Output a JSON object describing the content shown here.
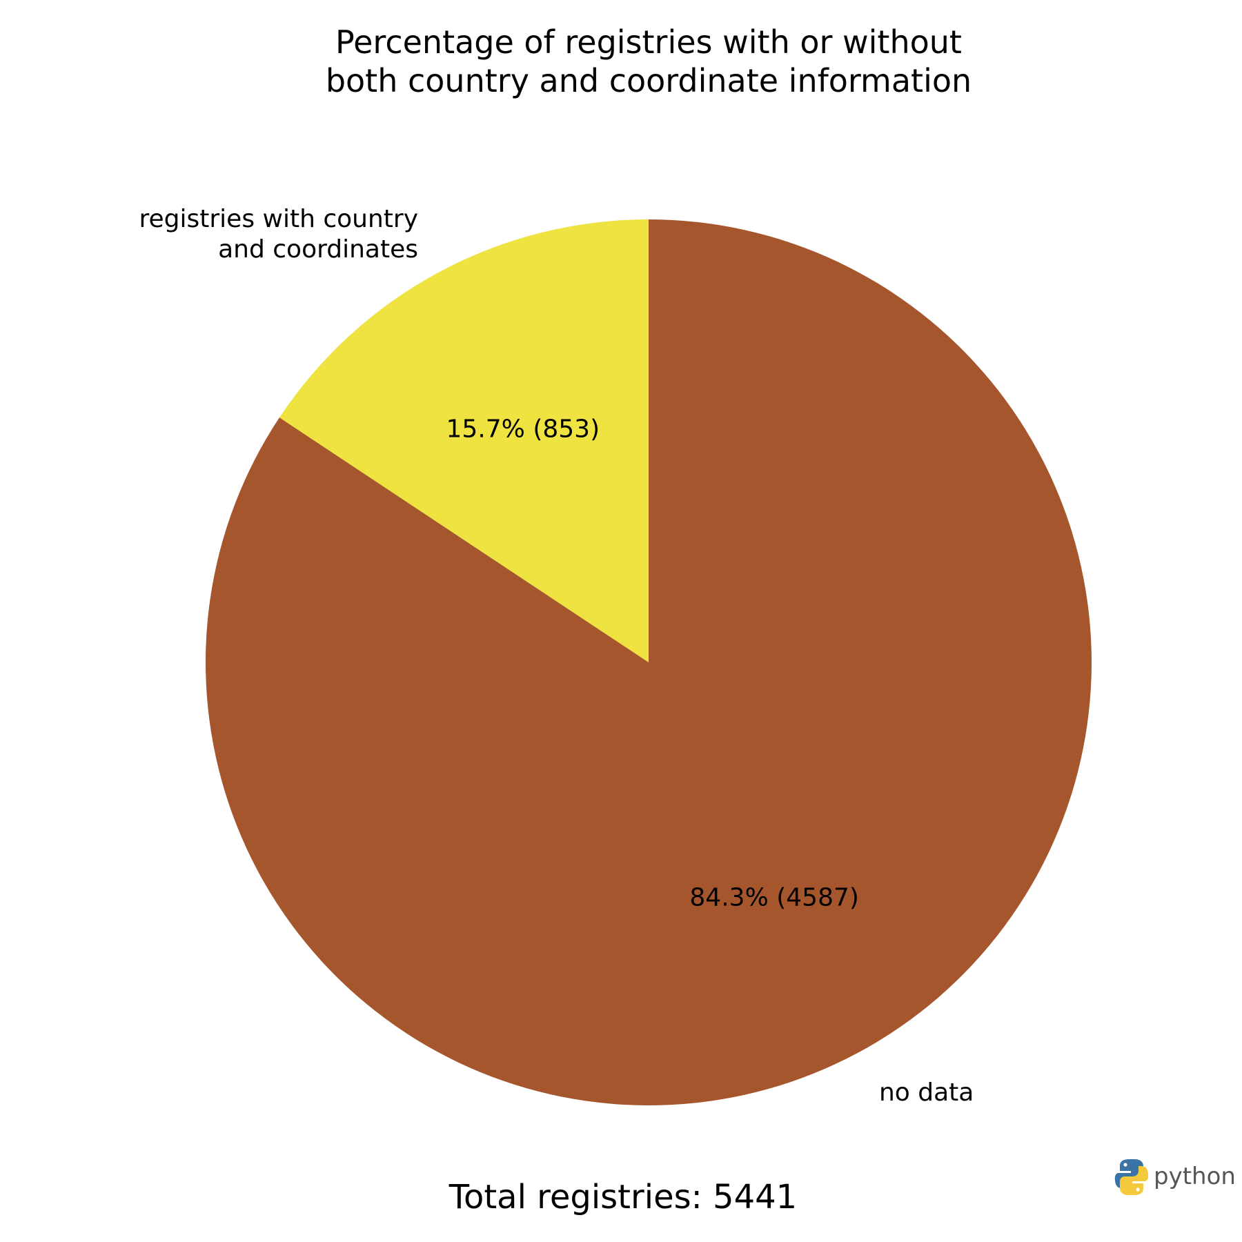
{
  "chart_data": {
    "type": "pie",
    "title": [
      "Percentage of registries with or without",
      "both country and coordinate information"
    ],
    "labels": [
      [
        "registries with country",
        "and coordinates"
      ],
      [
        "no data"
      ]
    ],
    "values": [
      853,
      4587
    ],
    "percent_labels": [
      "15.7% (853)",
      "84.3% (4587)"
    ],
    "colors": [
      "#EEE340",
      "#A6562C"
    ],
    "start_angle_deg": 90,
    "direction": "counterclockwise",
    "footer": "Total registries: 5441"
  },
  "logo": {
    "text": "python",
    "icon": "python-logo-icon"
  }
}
